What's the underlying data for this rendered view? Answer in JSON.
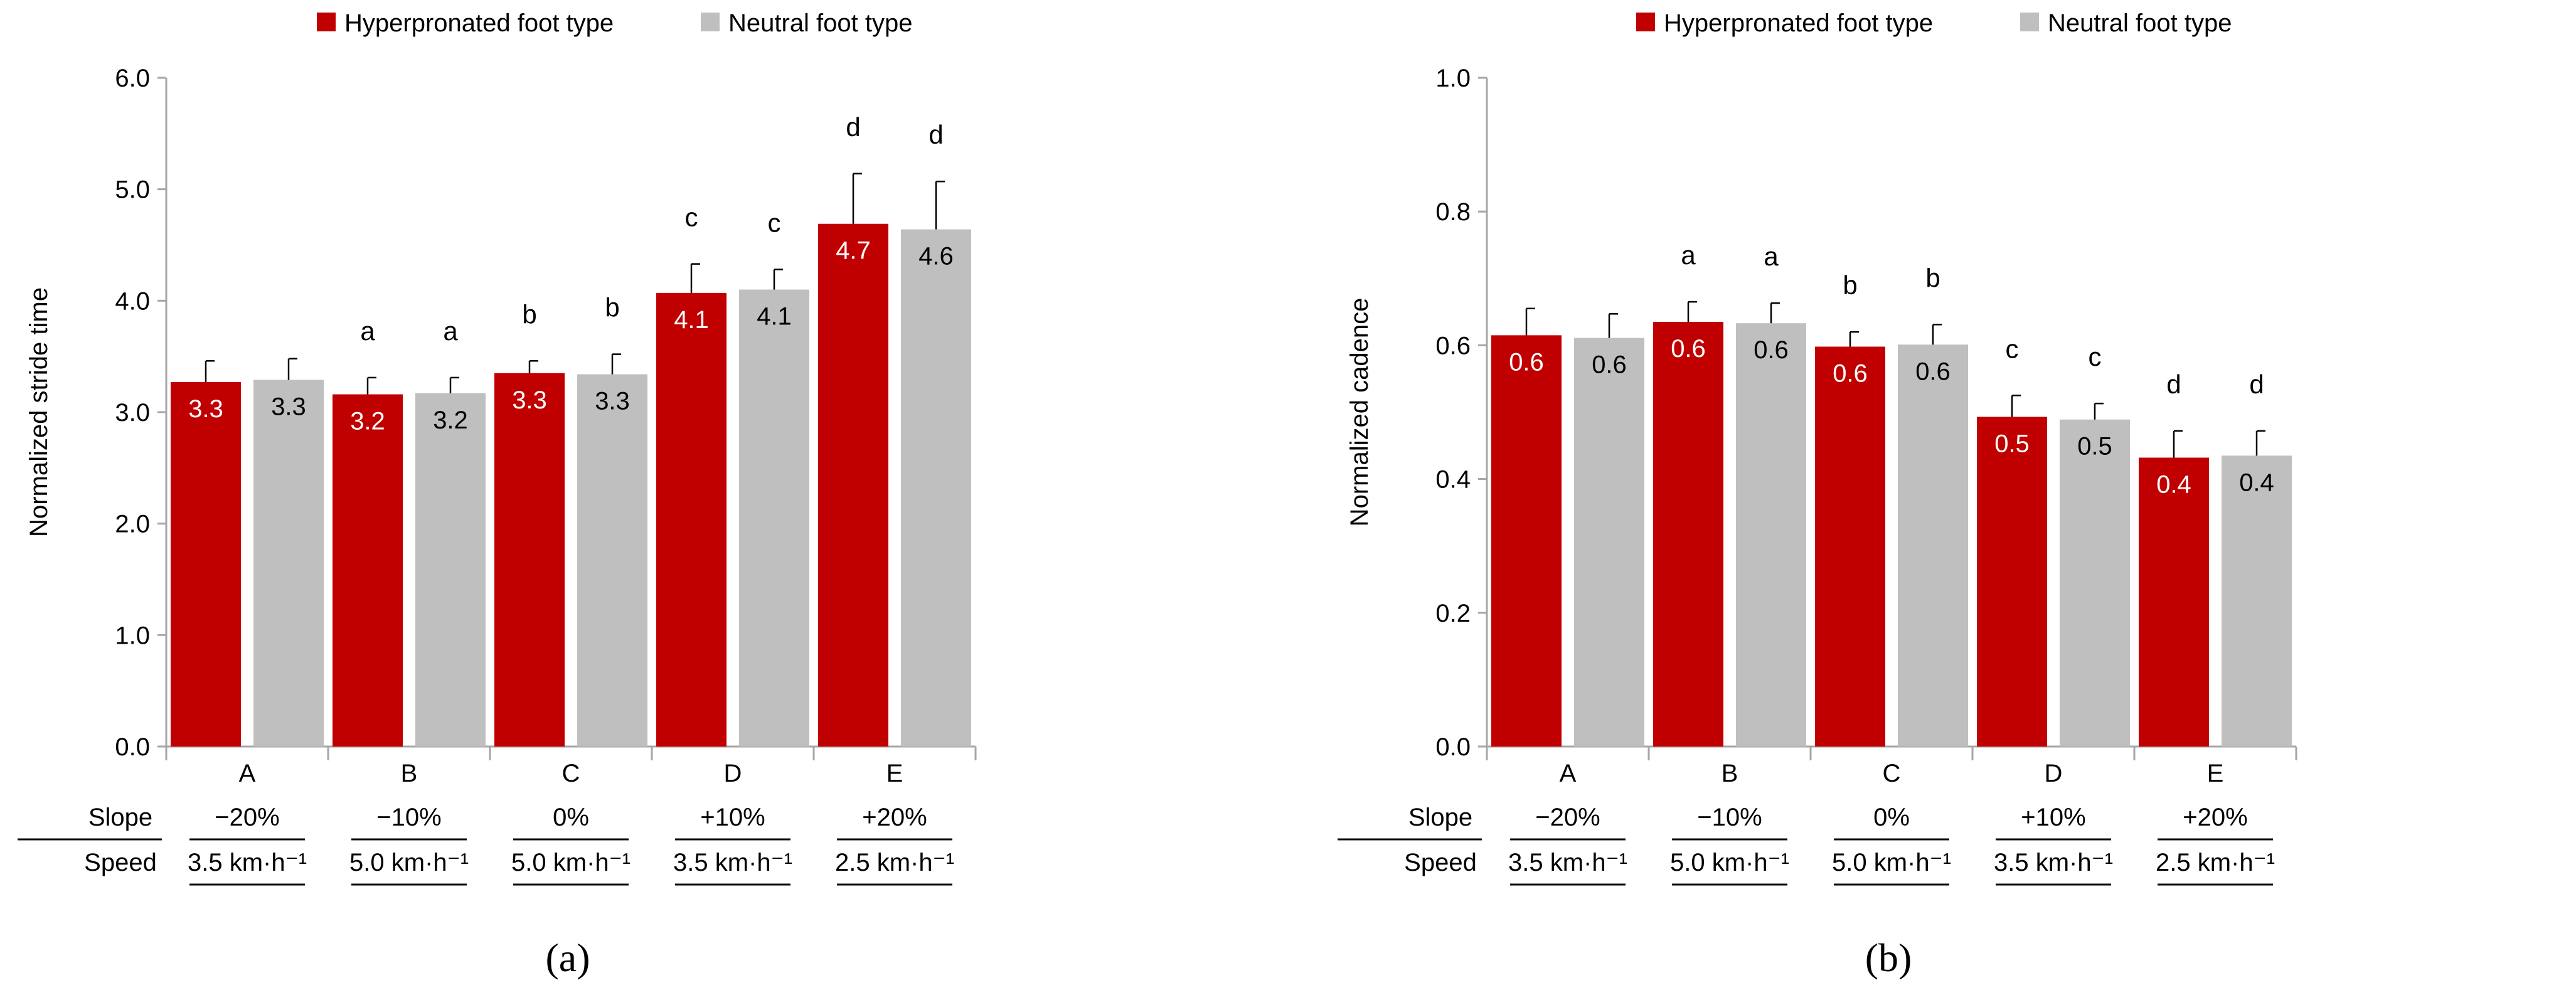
{
  "colors": {
    "hyper": "#c00000",
    "neutral": "#bfbfbf",
    "axis": "#a6a6a6",
    "text": "#000000",
    "bar_label_hyper": "#ffffff",
    "bar_label_neutral": "#000000"
  },
  "row_labels": {
    "slope": "Slope",
    "speed": "Speed"
  },
  "conditions": [
    {
      "letter": "A",
      "slope": "−20%",
      "speed": "3.5 km·h⁻¹"
    },
    {
      "letter": "B",
      "slope": "−10%",
      "speed": "5.0 km·h⁻¹"
    },
    {
      "letter": "C",
      "slope": "0%",
      "speed": "5.0 km·h⁻¹"
    },
    {
      "letter": "D",
      "slope": "+10%",
      "speed": "3.5 km·h⁻¹"
    },
    {
      "letter": "E",
      "slope": "+20%",
      "speed": "2.5 km·h⁻¹"
    }
  ],
  "chart_data": [
    {
      "type": "bar",
      "panel_label": "(a)",
      "ylabel": "Normalized stride time",
      "xlabel": "",
      "ylim": [
        0,
        6
      ],
      "yticks": [
        "0.0",
        "1.0",
        "2.0",
        "3.0",
        "4.0",
        "5.0",
        "6.0"
      ],
      "ytick_values": [
        0,
        1,
        2,
        3,
        4,
        5,
        6
      ],
      "categories": [
        "A",
        "B",
        "C",
        "D",
        "E"
      ],
      "legend_position": "top-center",
      "series": [
        {
          "name": "Hyperpronated foot type",
          "values": [
            3.27,
            3.16,
            3.35,
            4.07,
            4.69
          ],
          "errors": [
            0.19,
            0.15,
            0.11,
            0.26,
            0.45
          ],
          "labels": [
            "3.3",
            "3.2",
            "3.3",
            "4.1",
            "4.7"
          ],
          "significance": [
            "",
            "a",
            "b",
            "c",
            "d"
          ]
        },
        {
          "name": "Neutral foot type",
          "values": [
            3.29,
            3.17,
            3.34,
            4.1,
            4.64
          ],
          "errors": [
            0.19,
            0.14,
            0.18,
            0.18,
            0.43
          ],
          "labels": [
            "3.3",
            "3.2",
            "3.3",
            "4.1",
            "4.6"
          ],
          "significance": [
            "",
            "a",
            "b",
            "c",
            "d"
          ]
        }
      ]
    },
    {
      "type": "bar",
      "panel_label": "(b)",
      "ylabel": "Normalized cadence",
      "xlabel": "",
      "ylim": [
        0,
        1
      ],
      "yticks": [
        "0.0",
        "0.2",
        "0.4",
        "0.6",
        "0.8",
        "1.0"
      ],
      "ytick_values": [
        0,
        0.2,
        0.4,
        0.6,
        0.8,
        1.0
      ],
      "categories": [
        "A",
        "B",
        "C",
        "D",
        "E"
      ],
      "legend_position": "top-center",
      "series": [
        {
          "name": "Hyperpronated foot type",
          "values": [
            0.615,
            0.635,
            0.598,
            0.493,
            0.432
          ],
          "errors": [
            0.04,
            0.03,
            0.022,
            0.032,
            0.04
          ],
          "labels": [
            "0.6",
            "0.6",
            "0.6",
            "0.5",
            "0.4"
          ],
          "significance": [
            "",
            "a",
            "b",
            "c",
            "d"
          ]
        },
        {
          "name": "Neutral foot type",
          "values": [
            0.611,
            0.633,
            0.601,
            0.489,
            0.435
          ],
          "errors": [
            0.036,
            0.03,
            0.03,
            0.024,
            0.037
          ],
          "labels": [
            "0.6",
            "0.6",
            "0.6",
            "0.5",
            "0.4"
          ],
          "significance": [
            "",
            "a",
            "b",
            "c",
            "d"
          ]
        }
      ]
    }
  ]
}
